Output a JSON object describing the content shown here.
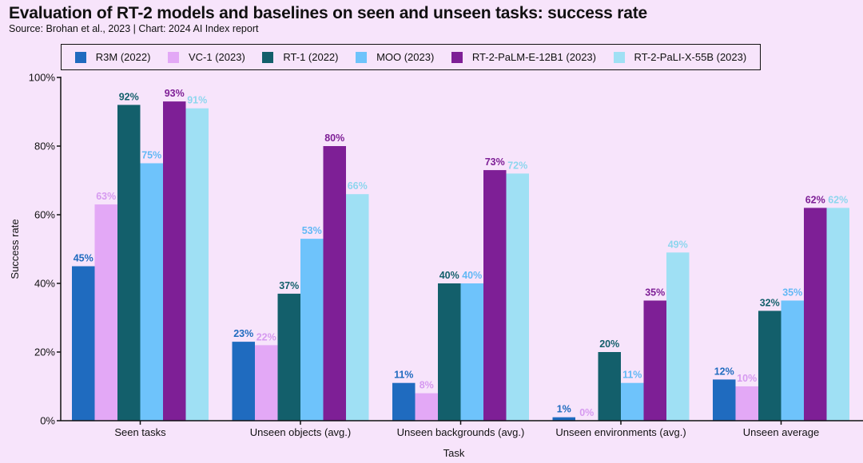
{
  "header": {
    "title": "Evaluation of RT-2 models and baselines on seen and unseen tasks: success rate",
    "subtitle": "Source: Brohan et al., 2023 | Chart: 2024 AI Index report"
  },
  "chart_data": {
    "type": "bar",
    "title": "Evaluation of RT-2 models and baselines on seen and unseen tasks: success rate",
    "subtitle": "Source: Brohan et al., 2023 | Chart: 2024 AI Index report",
    "xlabel": "Task",
    "ylabel": "Success rate",
    "ylim": [
      0,
      100
    ],
    "yticks": [
      0,
      20,
      40,
      60,
      80,
      100
    ],
    "ytick_labels": [
      "0%",
      "20%",
      "40%",
      "60%",
      "80%",
      "100%"
    ],
    "grid": false,
    "legend_position": "top",
    "categories": [
      "Seen tasks",
      "Unseen objects (avg.)",
      "Unseen backgrounds (avg.)",
      "Unseen environments (avg.)",
      "Unseen average"
    ],
    "series": [
      {
        "name": "R3M (2022)",
        "color": "#1f6bbf",
        "label_color": "#1f6bbf",
        "values": [
          45,
          23,
          11,
          1,
          12
        ],
        "labels": [
          "45%",
          "23%",
          "11%",
          "1%",
          "12%"
        ]
      },
      {
        "name": "VC-1 (2023)",
        "color": "#e3a8f6",
        "label_color": "#d69af0",
        "values": [
          63,
          22,
          8,
          0,
          10
        ],
        "labels": [
          "63%",
          "22%",
          "8%",
          "0%",
          "10%"
        ]
      },
      {
        "name": "RT-1 (2022)",
        "color": "#135f6b",
        "label_color": "#135f6b",
        "values": [
          92,
          37,
          40,
          20,
          32
        ],
        "labels": [
          "92%",
          "37%",
          "40%",
          "20%",
          "32%"
        ]
      },
      {
        "name": "MOO (2023)",
        "color": "#6ec3fb",
        "label_color": "#62b8f5",
        "values": [
          75,
          53,
          40,
          11,
          35
        ],
        "labels": [
          "75%",
          "53%",
          "40%",
          "11%",
          "35%"
        ]
      },
      {
        "name": "RT-2-PaLM-E-12B1 (2023)",
        "color": "#7e1f96",
        "label_color": "#7e1f96",
        "values": [
          93,
          80,
          73,
          35,
          62
        ],
        "labels": [
          "93%",
          "80%",
          "73%",
          "35%",
          "62%"
        ]
      },
      {
        "name": "RT-2-PaLI-X-55B (2023)",
        "color": "#9fe0f4",
        "label_color": "#8dd6ee",
        "values": [
          91,
          66,
          72,
          49,
          62
        ],
        "labels": [
          "91%",
          "66%",
          "72%",
          "49%",
          "62%"
        ]
      }
    ]
  }
}
